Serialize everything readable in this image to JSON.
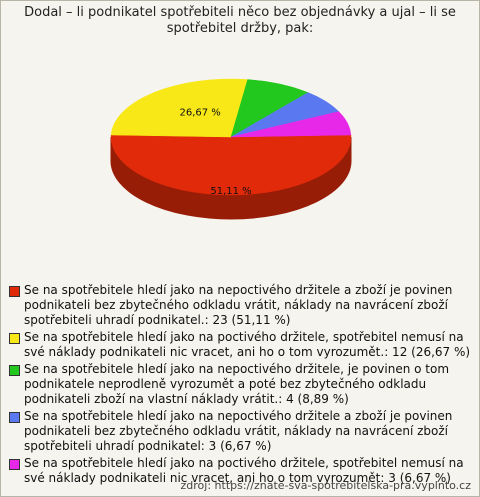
{
  "chart_data": {
    "type": "pie",
    "title": "Dodal – li podnikatel spotřebiteli něco bez objednávky a ujal – li se spotřebitel držby, pak:",
    "categories": [
      "Se na spotřebitele hledí jako na nepoctivého držitele a zboží je povinen podnikateli bez zbytečného odkladu vrátit, náklady na navrácení zboží spotřebiteli uhradí podnikatel.: 23 (51,11 %)",
      "Se na spotřebitele hledí jako na poctivého držitele, spotřebitel nemusí na své náklady podnikateli nic vracet, ani ho o tom vyrozumět.: 12 (26,67 %)",
      "Se na spotřebitele hledí jako na nepoctivého držitele, je povinen o tom podnikatele neprodleně vyrozumět a poté bez zbytečného odkladu podnikateli zboží na vlastní náklady vrátit.: 4 (8,89 %)",
      "Se na spotřebitele hledí jako na nepoctivého držitele a zboží je povinen podnikateli bez zbytečného odkladu vrátit, náklady na navrácení zboží spotřebiteli uhradí podnikatel: 3 (6,67 %)",
      "Se na spotřebitele hledí jako na poctivého držitele, spotřebitel nemusí na své náklady podnikateli nic vracet, ani ho o tom vyrozumět: 3 (6,67 %)"
    ],
    "values": [
      51.11,
      26.67,
      8.89,
      6.67,
      6.67
    ],
    "value_labels": [
      "51,11 %",
      "26,67 %",
      null,
      null,
      null
    ],
    "colors": [
      "#e02a0a",
      "#f8e818",
      "#22c81e",
      "#5a78f0",
      "#e828e8"
    ],
    "source": "zdroj: https://znate-sva-spotrebitelska-pra.vyplnto.cz"
  }
}
